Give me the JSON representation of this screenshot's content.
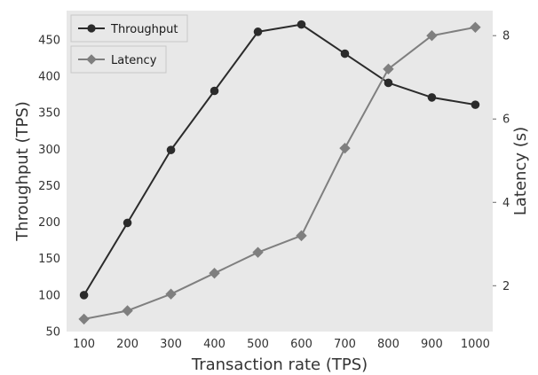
{
  "chart_data": {
    "type": "line",
    "title": "",
    "xlabel": "Transaction rate (TPS)",
    "ylabel_left": "Throughput (TPS)",
    "ylabel_right": "Latency (s)",
    "x": [
      100,
      200,
      300,
      400,
      500,
      600,
      700,
      800,
      900,
      1000
    ],
    "x_ticks": [
      "100",
      "200",
      "300",
      "400",
      "500",
      "600",
      "700",
      "800",
      "900",
      "1000"
    ],
    "xlim": [
      60,
      1040
    ],
    "ylim_left": [
      50,
      490
    ],
    "y_ticks_left": [
      "50",
      "100",
      "150",
      "200",
      "250",
      "300",
      "350",
      "400",
      "450"
    ],
    "ylim_right": [
      0.9,
      8.6
    ],
    "y_ticks_right": [
      "2",
      "4",
      "6",
      "8"
    ],
    "grid": false,
    "series": [
      {
        "name": "Throughput",
        "axis": "left",
        "marker": "circle",
        "color": "#2b2b2b",
        "values": [
          100,
          199,
          299,
          380,
          461,
          471,
          431,
          391,
          371,
          361
        ]
      },
      {
        "name": "Latency",
        "axis": "right",
        "marker": "diamond",
        "color": "#7f7f7f",
        "values": [
          1.2,
          1.4,
          1.8,
          2.3,
          2.8,
          3.2,
          5.3,
          7.2,
          8.0,
          8.2
        ]
      }
    ],
    "legend": [
      {
        "label": "Throughput",
        "position": "top-left"
      },
      {
        "label": "Latency",
        "position": "upper-left"
      }
    ],
    "colors": {
      "plot_background": "#e8e8e8",
      "axis_text": "#333333"
    }
  }
}
